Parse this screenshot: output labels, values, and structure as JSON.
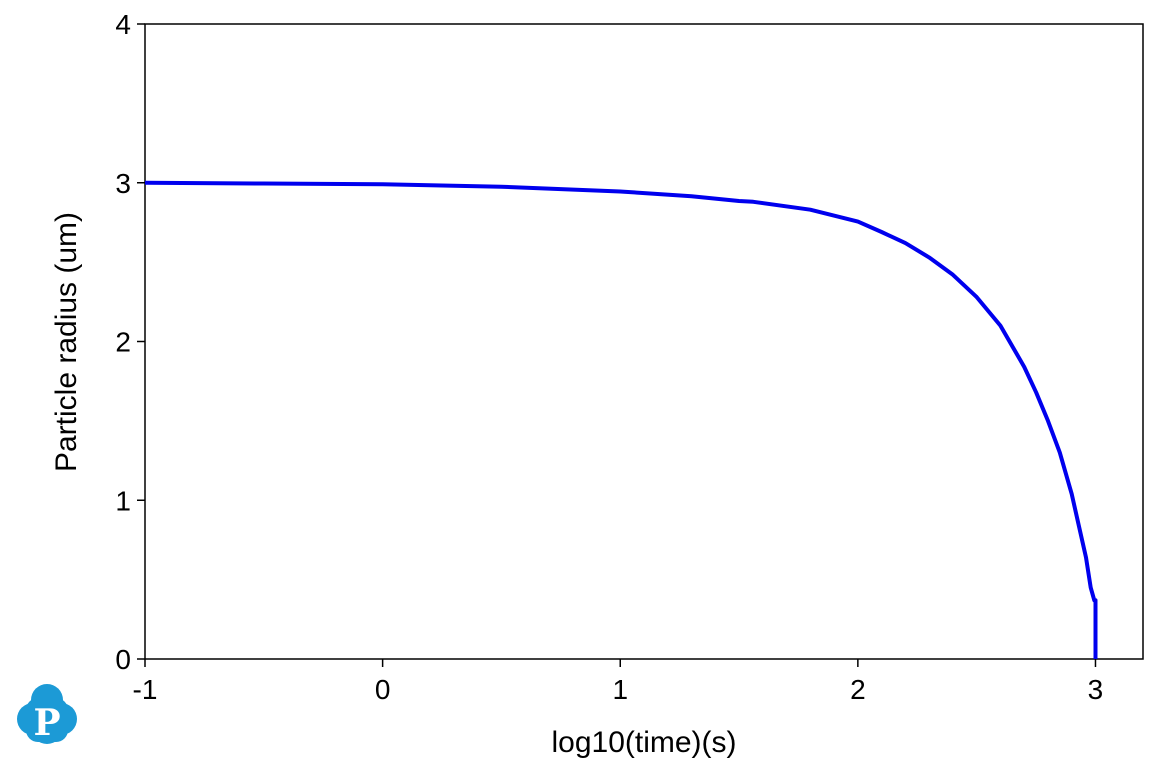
{
  "chart_data": {
    "type": "line",
    "title": "",
    "xlabel": "log10(time)(s)",
    "ylabel": "Particle radius (um)",
    "xlim": [
      -1,
      3.2
    ],
    "ylim": [
      0,
      4
    ],
    "x_ticks": [
      -1,
      0,
      1,
      2,
      3
    ],
    "x_tick_labels": [
      "-1",
      "0",
      "1",
      "2",
      "3"
    ],
    "y_ticks": [
      0,
      1,
      2,
      3,
      4
    ],
    "y_tick_labels": [
      "0",
      "1",
      "2",
      "3",
      "4"
    ],
    "grid": false,
    "legend": "none",
    "series": [
      {
        "color": "#0000ee",
        "x": [
          -1.0,
          -0.5,
          0.0,
          0.5,
          1.0,
          1.3,
          1.5,
          1.56,
          1.8,
          2.0,
          2.1,
          2.2,
          2.3,
          2.4,
          2.5,
          2.6,
          2.7,
          2.75,
          2.8,
          2.85,
          2.9,
          2.93,
          2.96,
          2.98,
          2.995,
          3.0,
          3.0
        ],
        "y": [
          3.0,
          2.995,
          2.99,
          2.975,
          2.945,
          2.915,
          2.885,
          2.88,
          2.83,
          2.755,
          2.69,
          2.62,
          2.53,
          2.42,
          2.28,
          2.1,
          1.84,
          1.68,
          1.5,
          1.3,
          1.04,
          0.84,
          0.64,
          0.45,
          0.37,
          0.37,
          0.0
        ]
      }
    ]
  },
  "logo": {
    "letter": "P",
    "color": "#1c9ad6"
  }
}
